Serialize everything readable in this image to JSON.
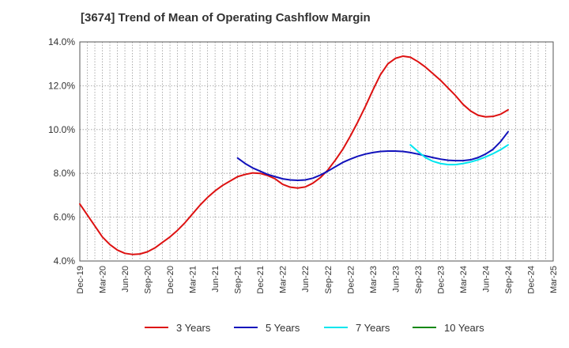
{
  "title": "[3674]  Trend of Mean of Operating Cashflow Margin",
  "chart_data": {
    "type": "line",
    "title": "[3674]  Trend of Mean of Operating Cashflow Margin",
    "xlabel": "",
    "ylabel": "",
    "ylim": [
      4.0,
      14.0
    ],
    "y_ticks": [
      "4.0%",
      "6.0%",
      "8.0%",
      "10.0%",
      "12.0%",
      "14.0%"
    ],
    "x_ticks": [
      "Dec-19",
      "Mar-20",
      "Jun-20",
      "Sep-20",
      "Dec-20",
      "Mar-21",
      "Jun-21",
      "Sep-21",
      "Dec-21",
      "Mar-22",
      "Jun-22",
      "Sep-22",
      "Dec-22",
      "Mar-23",
      "Jun-23",
      "Sep-23",
      "Dec-23",
      "Mar-24",
      "Jun-24",
      "Sep-24",
      "Dec-24",
      "Mar-25"
    ],
    "grid": true,
    "legend_position": "bottom",
    "series": [
      {
        "name": "3 Years",
        "color": "#dd1111",
        "points": [
          [
            "Dec-19",
            6.6
          ],
          [
            "Jan-20",
            6.1
          ],
          [
            "Feb-20",
            5.6
          ],
          [
            "Mar-20",
            5.1
          ],
          [
            "Apr-20",
            4.75
          ],
          [
            "May-20",
            4.5
          ],
          [
            "Jun-20",
            4.35
          ],
          [
            "Jul-20",
            4.3
          ],
          [
            "Aug-20",
            4.32
          ],
          [
            "Sep-20",
            4.42
          ],
          [
            "Oct-20",
            4.6
          ],
          [
            "Nov-20",
            4.85
          ],
          [
            "Dec-20",
            5.1
          ],
          [
            "Jan-21",
            5.4
          ],
          [
            "Feb-21",
            5.75
          ],
          [
            "Mar-21",
            6.15
          ],
          [
            "Apr-21",
            6.55
          ],
          [
            "May-21",
            6.9
          ],
          [
            "Jun-21",
            7.2
          ],
          [
            "Jul-21",
            7.45
          ],
          [
            "Aug-21",
            7.65
          ],
          [
            "Sep-21",
            7.85
          ],
          [
            "Oct-21",
            7.95
          ],
          [
            "Nov-21",
            8.02
          ],
          [
            "Dec-21",
            8.0
          ],
          [
            "Jan-22",
            7.9
          ],
          [
            "Feb-22",
            7.75
          ],
          [
            "Mar-22",
            7.5
          ],
          [
            "Apr-22",
            7.37
          ],
          [
            "May-22",
            7.33
          ],
          [
            "Jun-22",
            7.38
          ],
          [
            "Jul-22",
            7.55
          ],
          [
            "Aug-22",
            7.8
          ],
          [
            "Sep-22",
            8.15
          ],
          [
            "Oct-22",
            8.6
          ],
          [
            "Nov-22",
            9.1
          ],
          [
            "Dec-22",
            9.7
          ],
          [
            "Jan-23",
            10.35
          ],
          [
            "Feb-23",
            11.05
          ],
          [
            "Mar-23",
            11.8
          ],
          [
            "Apr-23",
            12.5
          ],
          [
            "May-23",
            13.0
          ],
          [
            "Jun-23",
            13.25
          ],
          [
            "Jul-23",
            13.35
          ],
          [
            "Aug-23",
            13.3
          ],
          [
            "Sep-23",
            13.1
          ],
          [
            "Oct-23",
            12.85
          ],
          [
            "Nov-23",
            12.55
          ],
          [
            "Dec-23",
            12.25
          ],
          [
            "Jan-24",
            11.9
          ],
          [
            "Feb-24",
            11.55
          ],
          [
            "Mar-24",
            11.15
          ],
          [
            "Apr-24",
            10.85
          ],
          [
            "May-24",
            10.65
          ],
          [
            "Jun-24",
            10.58
          ],
          [
            "Jul-24",
            10.6
          ],
          [
            "Aug-24",
            10.7
          ],
          [
            "Sep-24",
            10.9
          ]
        ]
      },
      {
        "name": "5 Years",
        "color": "#1111bb",
        "points": [
          [
            "Sep-21",
            8.7
          ],
          [
            "Oct-21",
            8.45
          ],
          [
            "Nov-21",
            8.25
          ],
          [
            "Dec-21",
            8.1
          ],
          [
            "Jan-22",
            7.95
          ],
          [
            "Feb-22",
            7.85
          ],
          [
            "Mar-22",
            7.75
          ],
          [
            "Apr-22",
            7.7
          ],
          [
            "May-22",
            7.68
          ],
          [
            "Jun-22",
            7.7
          ],
          [
            "Jul-22",
            7.78
          ],
          [
            "Aug-22",
            7.92
          ],
          [
            "Sep-22",
            8.1
          ],
          [
            "Oct-22",
            8.3
          ],
          [
            "Nov-22",
            8.5
          ],
          [
            "Dec-22",
            8.65
          ],
          [
            "Jan-23",
            8.78
          ],
          [
            "Feb-23",
            8.88
          ],
          [
            "Mar-23",
            8.95
          ],
          [
            "Apr-23",
            9.0
          ],
          [
            "May-23",
            9.02
          ],
          [
            "Jun-23",
            9.02
          ],
          [
            "Jul-23",
            9.0
          ],
          [
            "Aug-23",
            8.95
          ],
          [
            "Sep-23",
            8.88
          ],
          [
            "Oct-23",
            8.8
          ],
          [
            "Nov-23",
            8.72
          ],
          [
            "Dec-23",
            8.65
          ],
          [
            "Jan-24",
            8.6
          ],
          [
            "Feb-24",
            8.58
          ],
          [
            "Mar-24",
            8.58
          ],
          [
            "Apr-24",
            8.62
          ],
          [
            "May-24",
            8.72
          ],
          [
            "Jun-24",
            8.88
          ],
          [
            "Jul-24",
            9.1
          ],
          [
            "Aug-24",
            9.45
          ],
          [
            "Sep-24",
            9.9
          ]
        ]
      },
      {
        "name": "7 Years",
        "color": "#00e5ee",
        "points": [
          [
            "Aug-23",
            9.3
          ],
          [
            "Sep-23",
            9.0
          ],
          [
            "Oct-23",
            8.72
          ],
          [
            "Nov-23",
            8.55
          ],
          [
            "Dec-23",
            8.45
          ],
          [
            "Jan-24",
            8.4
          ],
          [
            "Feb-24",
            8.4
          ],
          [
            "Mar-24",
            8.45
          ],
          [
            "Apr-24",
            8.52
          ],
          [
            "May-24",
            8.62
          ],
          [
            "Jun-24",
            8.75
          ],
          [
            "Jul-24",
            8.9
          ],
          [
            "Aug-24",
            9.08
          ],
          [
            "Sep-24",
            9.3
          ]
        ]
      },
      {
        "name": "10 Years",
        "color": "#118811",
        "points": []
      }
    ]
  }
}
